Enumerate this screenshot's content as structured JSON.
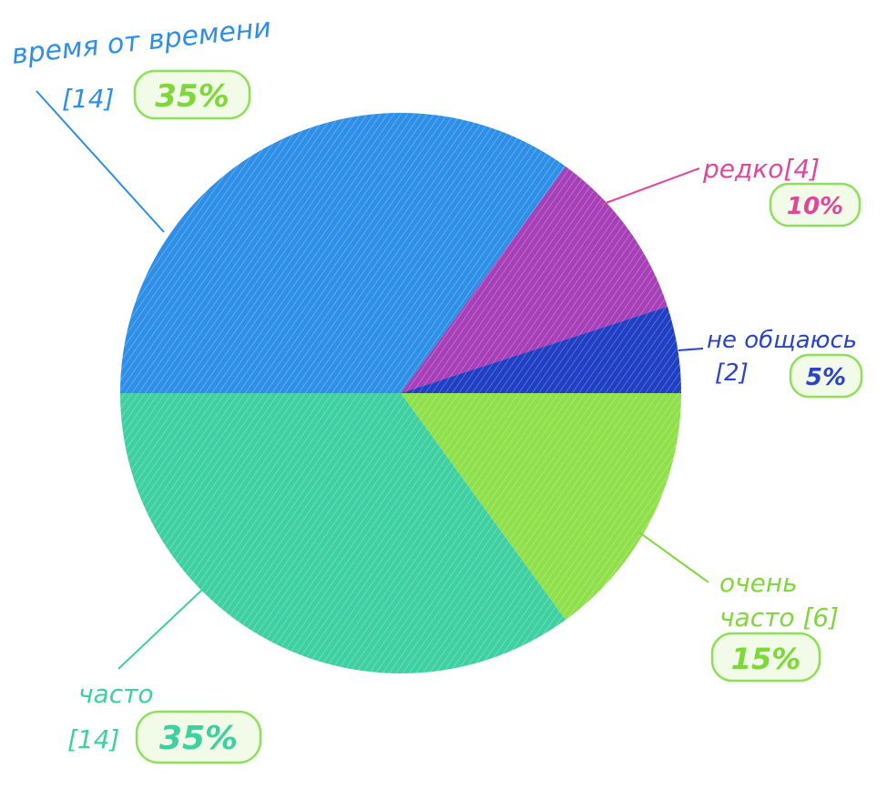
{
  "chart_data": {
    "type": "pie",
    "title": "",
    "slices": [
      {
        "label": "редко",
        "count": "[4]",
        "value": 10,
        "percent_label": "10%",
        "color": "#a63fb8"
      },
      {
        "label": "не общаюсь",
        "count": "[2]",
        "value": 5,
        "percent_label": "5%",
        "color": "#1f3fc4"
      },
      {
        "label": "очень часто",
        "count": "[6]",
        "value": 15,
        "percent_label": "15%",
        "color": "#8fe04a"
      },
      {
        "label": "часто",
        "count": "[14]",
        "value": 35,
        "percent_label": "35%",
        "color": "#3fd0a2"
      },
      {
        "label": "время от времени",
        "count": "[14]",
        "value": 35,
        "percent_label": "35%",
        "color": "#2e8fe6"
      }
    ]
  },
  "labels": {
    "vremya_line1": "время от времени",
    "vremya_count": "[14]",
    "redko": "редко[4]",
    "ne_obshchayus": "не общаюсь",
    "ne_obshchayus_count": "[2]",
    "ochen_line1": "очень",
    "ochen_line2": "часто [6]",
    "chasto": "часто",
    "chasto_count": "[14]"
  },
  "colors": {
    "blue_text": "#2e8fe6",
    "magenta_text": "#e0479a",
    "navy_text": "#2a44c8",
    "green_text": "#7fd83a",
    "teal_text": "#3fd0a2",
    "badge_outline": "#8ee05a",
    "badge_fill": "#f2fbe8"
  }
}
